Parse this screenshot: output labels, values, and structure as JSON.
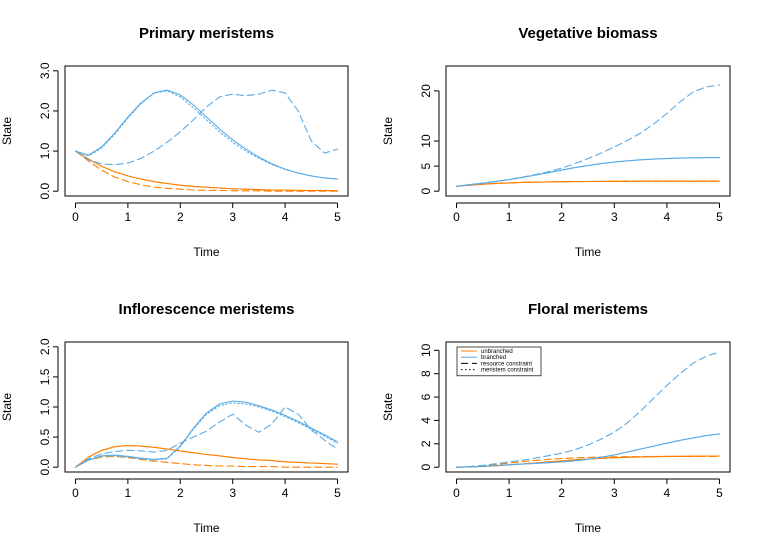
{
  "colors": {
    "unbranched": "#ff7f00",
    "branched": "#5aabe6",
    "axis": "#000000"
  },
  "chart_data": [
    {
      "type": "line",
      "title": "Primary meristems",
      "xlabel": "Time",
      "ylabel": "State",
      "xlim": [
        0,
        5
      ],
      "ylim": [
        0,
        3
      ],
      "xticks": [
        0,
        1,
        2,
        3,
        4,
        5
      ],
      "yticks": [
        0,
        1,
        2,
        3
      ],
      "ytick_labels": [
        "0.0",
        "1.0",
        "2.0",
        "3.0"
      ],
      "x": [
        0,
        0.25,
        0.5,
        0.75,
        1,
        1.25,
        1.5,
        1.75,
        2,
        2.25,
        2.5,
        2.75,
        3,
        3.25,
        3.5,
        3.75,
        4,
        4.25,
        4.5,
        4.75,
        5
      ],
      "series": [
        {
          "name": "unbranched",
          "style": "solid",
          "color_key": "unbranched",
          "values": [
            1.0,
            0.8,
            0.62,
            0.48,
            0.38,
            0.3,
            0.24,
            0.19,
            0.15,
            0.12,
            0.1,
            0.08,
            0.06,
            0.05,
            0.04,
            0.03,
            0.03,
            0.02,
            0.02,
            0.02,
            0.01
          ]
        },
        {
          "name": "unbranched",
          "style": "dashed",
          "color_key": "unbranched",
          "values": [
            1.0,
            0.75,
            0.52,
            0.35,
            0.24,
            0.16,
            0.1,
            0.07,
            0.05,
            0.03,
            0.02,
            0.02,
            0.01,
            0.01,
            0.01,
            0.0,
            0.0,
            0.0,
            0.0,
            0.0,
            0.0
          ]
        },
        {
          "name": "unbranched",
          "style": "dotted",
          "color_key": "unbranched",
          "values": [
            1.0,
            0.8,
            0.62,
            0.48,
            0.38,
            0.3,
            0.24,
            0.19,
            0.15,
            0.12,
            0.1,
            0.08,
            0.06,
            0.05,
            0.04,
            0.03,
            0.03,
            0.02,
            0.02,
            0.02,
            0.01
          ]
        },
        {
          "name": "branched",
          "style": "solid",
          "color_key": "branched",
          "values": [
            1.0,
            0.9,
            1.1,
            1.45,
            1.85,
            2.2,
            2.45,
            2.52,
            2.4,
            2.15,
            1.85,
            1.55,
            1.28,
            1.05,
            0.85,
            0.68,
            0.55,
            0.45,
            0.38,
            0.33,
            0.3
          ]
        },
        {
          "name": "branched",
          "style": "dashed",
          "color_key": "branched",
          "values": [
            1.0,
            0.78,
            0.68,
            0.66,
            0.7,
            0.82,
            1.0,
            1.22,
            1.48,
            1.78,
            2.1,
            2.35,
            2.42,
            2.38,
            2.42,
            2.52,
            2.45,
            2.0,
            1.25,
            0.95,
            1.05
          ]
        },
        {
          "name": "branched",
          "style": "dotted",
          "color_key": "branched",
          "values": [
            1.0,
            0.88,
            1.08,
            1.42,
            1.82,
            2.18,
            2.45,
            2.5,
            2.35,
            2.08,
            1.78,
            1.48,
            1.22,
            1.0,
            0.82,
            0.66,
            0.54,
            0.45,
            0.38,
            0.33,
            0.3
          ]
        }
      ]
    },
    {
      "type": "line",
      "title": "Vegetative biomass",
      "xlabel": "Time",
      "ylabel": "State",
      "xlim": [
        0,
        5
      ],
      "ylim": [
        0,
        24
      ],
      "xticks": [
        0,
        1,
        2,
        3,
        4,
        5
      ],
      "yticks": [
        0,
        5,
        10,
        20
      ],
      "ytick_labels": [
        "0",
        "5",
        "10",
        "20"
      ],
      "x": [
        0,
        0.25,
        0.5,
        0.75,
        1,
        1.25,
        1.5,
        1.75,
        2,
        2.25,
        2.5,
        2.75,
        3,
        3.25,
        3.5,
        3.75,
        4,
        4.25,
        4.5,
        4.75,
        5
      ],
      "series": [
        {
          "name": "unbranched",
          "style": "solid",
          "color_key": "unbranched",
          "values": [
            1.0,
            1.2,
            1.4,
            1.55,
            1.65,
            1.75,
            1.8,
            1.85,
            1.9,
            1.92,
            1.94,
            1.96,
            1.97,
            1.98,
            1.99,
            2.0,
            2.0,
            2.0,
            2.0,
            2.0,
            2.0
          ]
        },
        {
          "name": "unbranched",
          "style": "dashed",
          "color_key": "unbranched",
          "values": [
            1.0,
            1.2,
            1.4,
            1.55,
            1.65,
            1.75,
            1.8,
            1.85,
            1.9,
            1.92,
            1.94,
            1.96,
            1.97,
            1.98,
            1.99,
            2.0,
            2.0,
            2.0,
            2.0,
            2.0,
            2.0
          ]
        },
        {
          "name": "unbranched",
          "style": "dotted",
          "color_key": "unbranched",
          "values": [
            1.0,
            1.2,
            1.4,
            1.55,
            1.65,
            1.75,
            1.8,
            1.85,
            1.9,
            1.92,
            1.94,
            1.96,
            1.97,
            1.98,
            1.99,
            2.0,
            2.0,
            2.0,
            2.0,
            2.0,
            2.0
          ]
        },
        {
          "name": "branched",
          "style": "solid",
          "color_key": "branched",
          "values": [
            1.0,
            1.3,
            1.6,
            1.95,
            2.3,
            2.75,
            3.2,
            3.7,
            4.2,
            4.7,
            5.1,
            5.5,
            5.8,
            6.05,
            6.25,
            6.4,
            6.5,
            6.6,
            6.65,
            6.7,
            6.7
          ]
        },
        {
          "name": "branched",
          "style": "dashed",
          "color_key": "branched",
          "values": [
            1.0,
            1.3,
            1.6,
            1.95,
            2.3,
            2.8,
            3.3,
            3.9,
            4.6,
            5.5,
            6.5,
            7.6,
            8.8,
            10.1,
            11.6,
            13.4,
            15.5,
            17.8,
            19.8,
            20.8,
            21.2
          ]
        },
        {
          "name": "branched",
          "style": "dotted",
          "color_key": "branched",
          "values": [
            1.0,
            1.3,
            1.6,
            1.95,
            2.3,
            2.75,
            3.2,
            3.7,
            4.2,
            4.7,
            5.1,
            5.5,
            5.8,
            6.05,
            6.25,
            6.4,
            6.5,
            6.6,
            6.65,
            6.7,
            6.7
          ]
        }
      ]
    },
    {
      "type": "line",
      "title": "Inflorescence meristems",
      "xlabel": "Time",
      "ylabel": "State",
      "xlim": [
        0,
        5
      ],
      "ylim": [
        0,
        2
      ],
      "xticks": [
        0,
        1,
        2,
        3,
        4,
        5
      ],
      "yticks": [
        0,
        0.5,
        1,
        1.5,
        2
      ],
      "ytick_labels": [
        "0.0",
        "0.5",
        "1.0",
        "1.5",
        "2.0"
      ],
      "x": [
        0,
        0.25,
        0.5,
        0.75,
        1,
        1.25,
        1.5,
        1.75,
        2,
        2.25,
        2.5,
        2.75,
        3,
        3.25,
        3.5,
        3.75,
        4,
        4.25,
        4.5,
        4.75,
        5
      ],
      "series": [
        {
          "name": "unbranched",
          "style": "solid",
          "color_key": "unbranched",
          "values": [
            0.0,
            0.17,
            0.28,
            0.34,
            0.36,
            0.35,
            0.33,
            0.3,
            0.27,
            0.24,
            0.21,
            0.19,
            0.16,
            0.14,
            0.12,
            0.11,
            0.09,
            0.08,
            0.07,
            0.06,
            0.05
          ]
        },
        {
          "name": "unbranched",
          "style": "dashed",
          "color_key": "unbranched",
          "values": [
            0.0,
            0.12,
            0.17,
            0.18,
            0.16,
            0.13,
            0.1,
            0.08,
            0.06,
            0.04,
            0.03,
            0.02,
            0.02,
            0.01,
            0.01,
            0.01,
            0.0,
            0.0,
            0.0,
            0.0,
            0.0
          ]
        },
        {
          "name": "unbranched",
          "style": "dotted",
          "color_key": "unbranched",
          "values": [
            0.0,
            0.17,
            0.28,
            0.34,
            0.36,
            0.35,
            0.33,
            0.3,
            0.27,
            0.24,
            0.21,
            0.19,
            0.16,
            0.14,
            0.12,
            0.11,
            0.09,
            0.08,
            0.07,
            0.06,
            0.05
          ]
        },
        {
          "name": "branched",
          "style": "solid",
          "color_key": "branched",
          "values": [
            0.0,
            0.12,
            0.19,
            0.2,
            0.18,
            0.15,
            0.13,
            0.15,
            0.35,
            0.65,
            0.9,
            1.05,
            1.1,
            1.08,
            1.02,
            0.95,
            0.86,
            0.76,
            0.65,
            0.54,
            0.42
          ]
        },
        {
          "name": "branched",
          "style": "dashed",
          "color_key": "branched",
          "values": [
            0.0,
            0.14,
            0.22,
            0.26,
            0.28,
            0.27,
            0.25,
            0.28,
            0.4,
            0.5,
            0.6,
            0.75,
            0.88,
            0.7,
            0.58,
            0.72,
            1.0,
            0.88,
            0.62,
            0.45,
            0.3
          ]
        },
        {
          "name": "branched",
          "style": "dotted",
          "color_key": "branched",
          "values": [
            0.0,
            0.12,
            0.18,
            0.19,
            0.17,
            0.14,
            0.12,
            0.14,
            0.34,
            0.63,
            0.88,
            1.02,
            1.07,
            1.05,
            1.0,
            0.93,
            0.84,
            0.74,
            0.63,
            0.52,
            0.4
          ]
        }
      ]
    },
    {
      "type": "line",
      "title": "Floral meristems",
      "xlabel": "Time",
      "ylabel": "State",
      "xlim": [
        0,
        5
      ],
      "ylim": [
        0,
        10.3
      ],
      "xticks": [
        0,
        1,
        2,
        3,
        4,
        5
      ],
      "yticks": [
        0,
        2,
        4,
        6,
        8,
        10
      ],
      "ytick_labels": [
        "0",
        "2",
        "4",
        "6",
        "8",
        "10"
      ],
      "legend": {
        "placement": "top-left",
        "entries": [
          {
            "label": "unbranched",
            "style": "solid",
            "color_key": "unbranched"
          },
          {
            "label": "branched",
            "style": "solid",
            "color_key": "branched"
          },
          {
            "label": "resource constraint",
            "style": "dashed",
            "color_key": "axis"
          },
          {
            "label": "meristem constraint",
            "style": "dotted",
            "color_key": "axis"
          }
        ]
      },
      "x": [
        0,
        0.25,
        0.5,
        0.75,
        1,
        1.25,
        1.5,
        1.75,
        2,
        2.25,
        2.5,
        2.75,
        3,
        3.25,
        3.5,
        3.75,
        4,
        4.25,
        4.5,
        4.75,
        5
      ],
      "series": [
        {
          "name": "unbranched",
          "style": "solid",
          "color_key": "unbranched",
          "values": [
            0.0,
            0.02,
            0.06,
            0.12,
            0.2,
            0.28,
            0.37,
            0.46,
            0.55,
            0.63,
            0.7,
            0.76,
            0.81,
            0.85,
            0.88,
            0.9,
            0.92,
            0.93,
            0.94,
            0.95,
            0.96
          ]
        },
        {
          "name": "unbranched",
          "style": "dashed",
          "color_key": "unbranched",
          "values": [
            0.0,
            0.04,
            0.12,
            0.24,
            0.36,
            0.48,
            0.58,
            0.67,
            0.74,
            0.8,
            0.84,
            0.87,
            0.89,
            0.9,
            0.91,
            0.92,
            0.92,
            0.92,
            0.92,
            0.92,
            0.92
          ]
        },
        {
          "name": "unbranched",
          "style": "dotted",
          "color_key": "unbranched",
          "values": [
            0.0,
            0.02,
            0.06,
            0.12,
            0.2,
            0.28,
            0.37,
            0.46,
            0.55,
            0.63,
            0.7,
            0.76,
            0.81,
            0.85,
            0.88,
            0.9,
            0.92,
            0.93,
            0.94,
            0.95,
            0.96
          ]
        },
        {
          "name": "branched",
          "style": "solid",
          "color_key": "branched",
          "values": [
            0.0,
            0.03,
            0.08,
            0.14,
            0.2,
            0.26,
            0.32,
            0.38,
            0.45,
            0.55,
            0.68,
            0.85,
            1.05,
            1.3,
            1.55,
            1.8,
            2.05,
            2.3,
            2.5,
            2.7,
            2.85
          ]
        },
        {
          "name": "branched",
          "style": "dashed",
          "color_key": "branched",
          "values": [
            0.0,
            0.05,
            0.15,
            0.3,
            0.45,
            0.6,
            0.78,
            0.98,
            1.2,
            1.5,
            1.9,
            2.4,
            3.0,
            3.8,
            4.8,
            5.9,
            7.0,
            8.0,
            8.9,
            9.5,
            9.85
          ]
        },
        {
          "name": "branched",
          "style": "dotted",
          "color_key": "branched",
          "values": [
            0.0,
            0.03,
            0.08,
            0.14,
            0.2,
            0.26,
            0.32,
            0.38,
            0.45,
            0.55,
            0.68,
            0.85,
            1.05,
            1.3,
            1.55,
            1.8,
            2.05,
            2.3,
            2.5,
            2.7,
            2.85
          ]
        }
      ]
    }
  ]
}
